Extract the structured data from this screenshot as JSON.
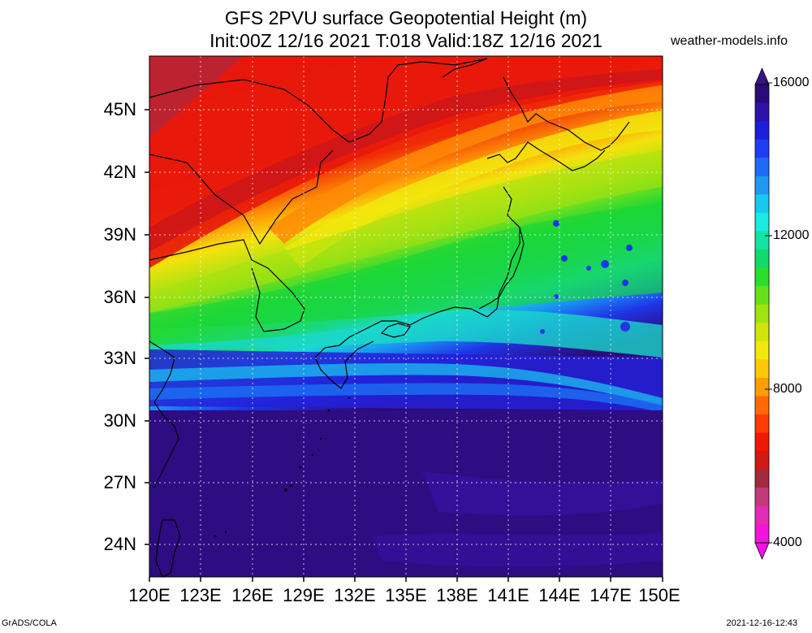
{
  "title": {
    "line1": "GFS 2PVU surface Geopotential Height (m)",
    "line2": "Init:00Z 12/16 2021 T:018 Valid:18Z 12/16 2021"
  },
  "credit": "weather-models.info",
  "map": {
    "lat_labels": [
      "45N",
      "42N",
      "39N",
      "36N",
      "33N",
      "30N",
      "27N",
      "24N"
    ],
    "lon_labels": [
      "120E",
      "123E",
      "126E",
      "129E",
      "132E",
      "135E",
      "138E",
      "141E",
      "144E",
      "147E",
      "150E"
    ]
  },
  "colorbar": {
    "labels": [
      "16000",
      "12000",
      "8000",
      "4000"
    ],
    "colors_top_to_bottom": [
      "#2b0a7a",
      "#2f12a8",
      "#1b1fd8",
      "#1f3cf0",
      "#1e6bf5",
      "#1e98f0",
      "#18c8ef",
      "#1aeadf",
      "#15e3a2",
      "#13d86a",
      "#2ade2a",
      "#66e01c",
      "#a0e212",
      "#d2e40e",
      "#f1e80d",
      "#ffc70a",
      "#ff9d08",
      "#ff6a06",
      "#ff3a04",
      "#f01802",
      "#cf1a16",
      "#a32a3a",
      "#c23a7c",
      "#e32cb6",
      "#f015d8"
    ],
    "top_arrow_color": "#3b1483",
    "bottom_arrow_color": "#f012e8"
  },
  "footer": {
    "left": "GrADS/COLA",
    "right": "2021-12-16-12:43"
  }
}
